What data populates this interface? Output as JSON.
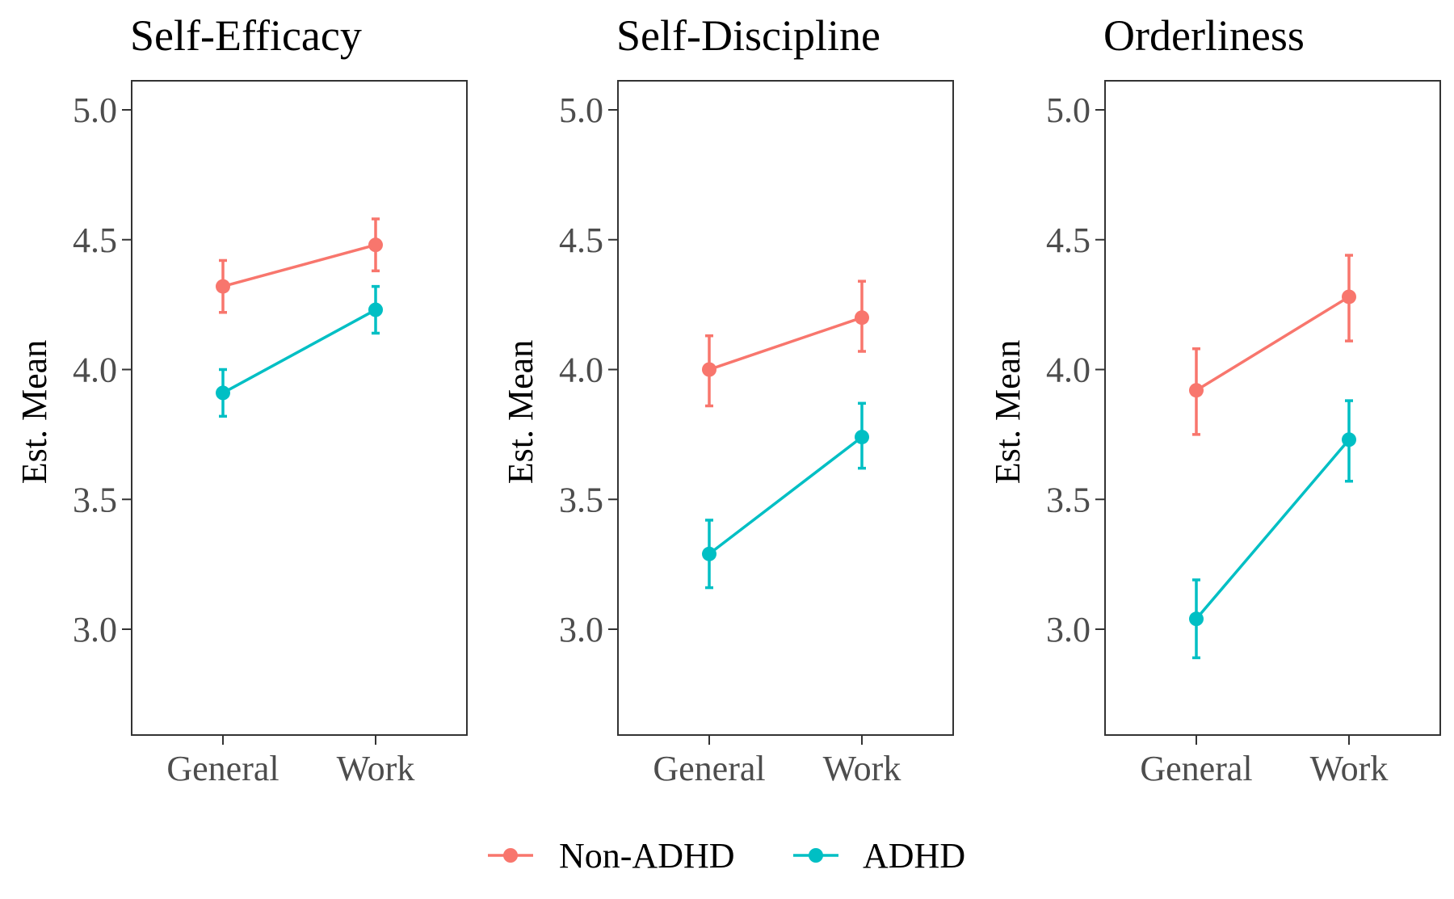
{
  "chart_data": [
    {
      "type": "line",
      "title": "Self-Efficacy",
      "xlabel": "",
      "ylabel": "Est. Mean",
      "categories": [
        "General",
        "Work"
      ],
      "ylim": [
        2.6,
        5.1
      ],
      "yticks": [
        "3.0",
        "3.5",
        "4.0",
        "4.5",
        "5.0"
      ],
      "grid": false,
      "series": [
        {
          "name": "Non-ADHD",
          "values": [
            4.32,
            4.48
          ],
          "lower": [
            4.22,
            4.38
          ],
          "upper": [
            4.42,
            4.58
          ]
        },
        {
          "name": "ADHD",
          "values": [
            3.91,
            4.23
          ],
          "lower": [
            3.82,
            4.14
          ],
          "upper": [
            4.0,
            4.32
          ]
        }
      ]
    },
    {
      "type": "line",
      "title": "Self-Discipline",
      "xlabel": "",
      "ylabel": "Est. Mean",
      "categories": [
        "General",
        "Work"
      ],
      "ylim": [
        2.6,
        5.1
      ],
      "yticks": [
        "3.0",
        "3.5",
        "4.0",
        "4.5",
        "5.0"
      ],
      "grid": false,
      "series": [
        {
          "name": "Non-ADHD",
          "values": [
            4.0,
            4.2
          ],
          "lower": [
            3.86,
            4.07
          ],
          "upper": [
            4.13,
            4.34
          ]
        },
        {
          "name": "ADHD",
          "values": [
            3.29,
            3.74
          ],
          "lower": [
            3.16,
            3.62
          ],
          "upper": [
            3.42,
            3.87
          ]
        }
      ]
    },
    {
      "type": "line",
      "title": "Orderliness",
      "xlabel": "",
      "ylabel": "Est. Mean",
      "categories": [
        "General",
        "Work"
      ],
      "ylim": [
        2.6,
        5.1
      ],
      "yticks": [
        "3.0",
        "3.5",
        "4.0",
        "4.5",
        "5.0"
      ],
      "grid": false,
      "series": [
        {
          "name": "Non-ADHD",
          "values": [
            3.92,
            4.28
          ],
          "lower": [
            3.75,
            4.11
          ],
          "upper": [
            4.08,
            4.44
          ]
        },
        {
          "name": "ADHD",
          "values": [
            3.04,
            3.73
          ],
          "lower": [
            2.89,
            3.57
          ],
          "upper": [
            3.19,
            3.88
          ]
        }
      ]
    }
  ],
  "legend": {
    "placement": "bottom",
    "items": [
      {
        "name": "Non-ADHD",
        "color": "#F8766D"
      },
      {
        "name": "ADHD",
        "color": "#00BFC4"
      }
    ]
  }
}
